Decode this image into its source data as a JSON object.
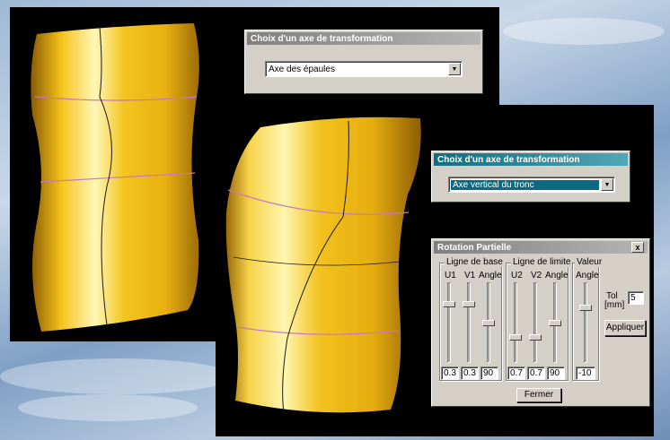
{
  "dialog_back": {
    "title": "Choix d'un axe de transformation",
    "selected": "Axe des épaules"
  },
  "dialog_front": {
    "title": "Choix d'un axe de transformation",
    "selected": "Axe vertical du tronc"
  },
  "rotation": {
    "title": "Rotation Partielle",
    "close": "x",
    "group_base": {
      "label": "Ligne de base",
      "cols": [
        "U1",
        "V1",
        "Angle"
      ],
      "values": [
        "0.3",
        "0.3",
        "90"
      ],
      "levels": [
        0.25,
        0.25,
        0.5
      ]
    },
    "group_limit": {
      "label": "Ligne de limite",
      "cols": [
        "U2",
        "V2",
        "Angle"
      ],
      "values": [
        "0.7",
        "0.7",
        "90"
      ],
      "levels": [
        0.7,
        0.7,
        0.5
      ]
    },
    "group_value": {
      "label": "Valeur",
      "col": "Angle",
      "value": "-10",
      "level": 0.3
    },
    "tol_label_1": "Tol",
    "tol_label_2": "[mm]",
    "tol_value": "5",
    "apply_button": "Appliquer",
    "close_button": "Fermer"
  },
  "colors": {
    "surface_light": "#fff3a8",
    "surface_mid": "#f2c21e",
    "surface_dark": "#a8720a",
    "iso_line": "#c878c0",
    "curve_line": "#1a1a1a"
  }
}
